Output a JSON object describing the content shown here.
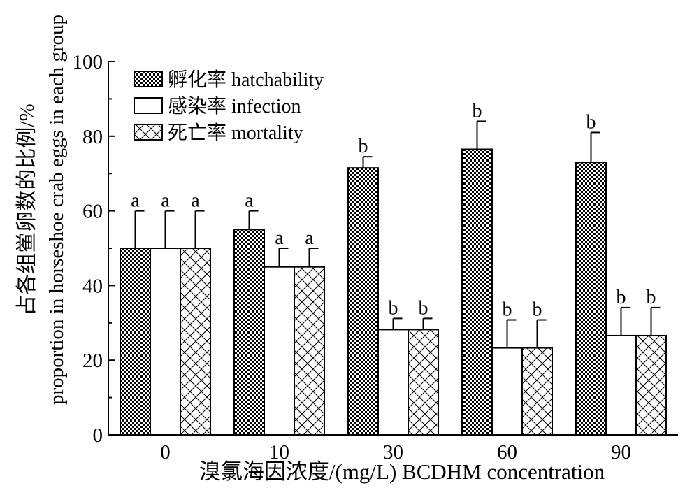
{
  "chart_data": {
    "type": "bar",
    "categories": [
      "0",
      "10",
      "30",
      "60",
      "90"
    ],
    "series": [
      {
        "name": "孵化率 hatchability",
        "pattern": "checker",
        "values": [
          50,
          55,
          71.5,
          76.5,
          73
        ],
        "errors": [
          10,
          5,
          3,
          7.5,
          8
        ],
        "labels": [
          "a",
          "a",
          "b",
          "b",
          "b"
        ]
      },
      {
        "name": "感染率 infection",
        "pattern": "none",
        "values": [
          50,
          45,
          28.2,
          23.3,
          26.6
        ],
        "errors": [
          10,
          5,
          3,
          7.5,
          7.5
        ],
        "labels": [
          "a",
          "a",
          "b",
          "b",
          "b"
        ]
      },
      {
        "name": "死亡率 mortality",
        "pattern": "crosshatch",
        "values": [
          50,
          45,
          28.2,
          23.3,
          26.6
        ],
        "errors": [
          10,
          5,
          3,
          7.5,
          7.5
        ],
        "labels": [
          "a",
          "a",
          "b",
          "b",
          "b"
        ]
      }
    ],
    "xlabel": "溴氯海因浓度/(mg/L) BCDHM concentration",
    "ylabel_cn": "占各组鲎卵数的比例/%",
    "ylabel_en": "proportion in horseshoe crab eggs in each group",
    "ylim": [
      0,
      100
    ],
    "yticks": [
      0,
      20,
      40,
      60,
      80,
      100
    ],
    "legend_position": "top-left",
    "grid": false
  }
}
